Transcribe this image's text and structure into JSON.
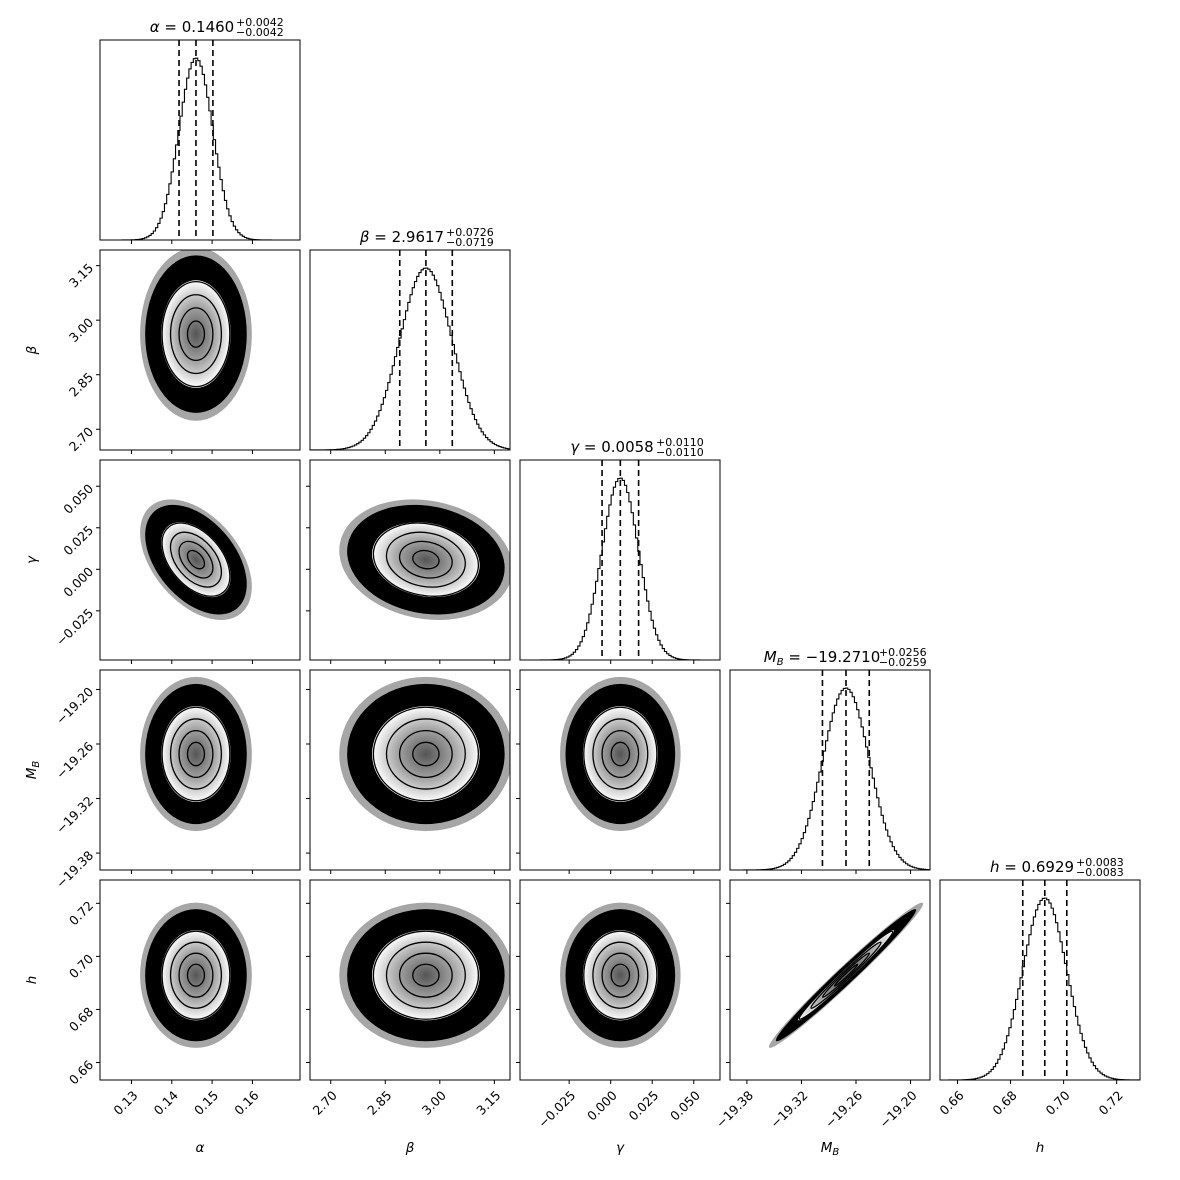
{
  "chart_data": {
    "type": "corner",
    "description_free": true,
    "parameters": [
      {
        "name": "alpha",
        "label": "α",
        "title_symbol": "α",
        "median": "0.1460",
        "err_plus": "+0.0042",
        "err_minus": "−0.0042",
        "center": 0.146,
        "sigma": 0.0042,
        "range": [
          0.1222,
          0.1718
        ],
        "ticks": [
          {
            "v": 0.13,
            "t": "0.13"
          },
          {
            "v": 0.14,
            "t": "0.14"
          },
          {
            "v": 0.15,
            "t": "0.15"
          },
          {
            "v": 0.16,
            "t": "0.16"
          }
        ],
        "quantiles": [
          0.1418,
          0.146,
          0.1502
        ]
      },
      {
        "name": "beta",
        "label": "β",
        "title_symbol": "β",
        "median": "2.9617",
        "err_plus": "+0.0726",
        "err_minus": "−0.0719",
        "center": 2.9617,
        "sigma": 0.0722,
        "range": [
          2.643,
          3.193
        ],
        "ticks": [
          {
            "v": 2.7,
            "t": "2.70"
          },
          {
            "v": 2.85,
            "t": "2.85"
          },
          {
            "v": 3.0,
            "t": "3.00"
          },
          {
            "v": 3.15,
            "t": "3.15"
          }
        ],
        "quantiles": [
          2.8898,
          2.9617,
          3.0343
        ]
      },
      {
        "name": "gamma",
        "label": "γ",
        "title_symbol": "γ",
        "median": "0.0058",
        "err_plus": "+0.0110",
        "err_minus": "−0.0110",
        "center": 0.0058,
        "sigma": 0.011,
        "range": [
          -0.0546,
          0.0658
        ],
        "ticks": [
          {
            "v": -0.025,
            "t": "−0.025"
          },
          {
            "v": 0.0,
            "t": "0.000"
          },
          {
            "v": 0.025,
            "t": "0.025"
          },
          {
            "v": 0.05,
            "t": "0.050"
          }
        ],
        "quantiles": [
          -0.0052,
          0.0058,
          0.0168
        ]
      },
      {
        "name": "MB",
        "label": "M",
        "label_sub": "B",
        "title_symbol": "M",
        "title_sub": "B",
        "median": "−19.2710",
        "err_plus": "+0.0256",
        "err_minus": "−0.0259",
        "center": -19.271,
        "sigma": 0.0257,
        "range": [
          -19.3986,
          -19.1786
        ],
        "ticks": [
          {
            "v": -19.38,
            "t": "−19.38"
          },
          {
            "v": -19.32,
            "t": "−19.32"
          },
          {
            "v": -19.26,
            "t": "−19.26"
          },
          {
            "v": -19.2,
            "t": "−19.20"
          }
        ],
        "quantiles": [
          -19.2969,
          -19.271,
          -19.2454
        ]
      },
      {
        "name": "h",
        "label": "h",
        "title_symbol": "h",
        "median": "0.6929",
        "err_plus": "+0.0083",
        "err_minus": "−0.0083",
        "center": 0.6929,
        "sigma": 0.0083,
        "range": [
          0.6534,
          0.7288
        ],
        "ticks": [
          {
            "v": 0.66,
            "t": "0.66"
          },
          {
            "v": 0.68,
            "t": "0.68"
          },
          {
            "v": 0.7,
            "t": "0.70"
          },
          {
            "v": 0.72,
            "t": "0.72"
          }
        ],
        "quantiles": [
          0.6846,
          0.6929,
          0.7012
        ]
      }
    ],
    "correlations": [
      {
        "pair": [
          "alpha",
          "beta"
        ],
        "rho": 0.0
      },
      {
        "pair": [
          "alpha",
          "gamma"
        ],
        "rho": -0.45
      },
      {
        "pair": [
          "beta",
          "gamma"
        ],
        "rho": -0.15
      },
      {
        "pair": [
          "alpha",
          "MB"
        ],
        "rho": 0.0
      },
      {
        "pair": [
          "beta",
          "MB"
        ],
        "rho": 0.0
      },
      {
        "pair": [
          "gamma",
          "MB"
        ],
        "rho": 0.0
      },
      {
        "pair": [
          "alpha",
          "h"
        ],
        "rho": 0.0
      },
      {
        "pair": [
          "beta",
          "h"
        ],
        "rho": 0.0
      },
      {
        "pair": [
          "gamma",
          "h"
        ],
        "rho": 0.0
      },
      {
        "pair": [
          "MB",
          "h"
        ],
        "rho": 0.985
      }
    ],
    "contour_levels_sigma": [
      0.5,
      1.0,
      1.5,
      2.0
    ],
    "colors": {
      "ink": "#000000",
      "background": "#ffffff",
      "density_core": "#555555"
    }
  }
}
